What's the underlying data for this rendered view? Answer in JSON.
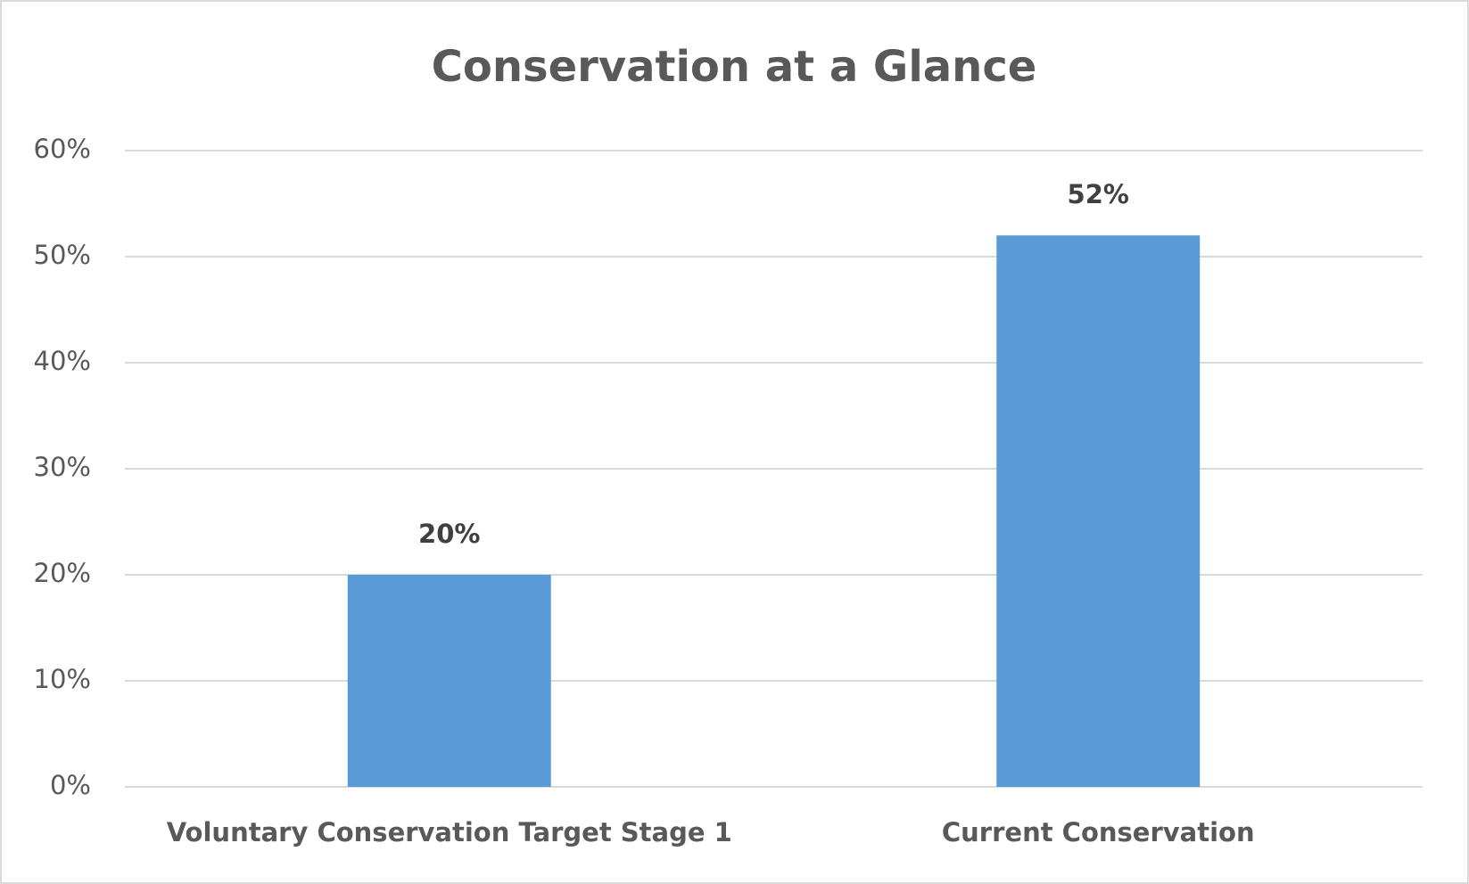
{
  "chart_data": {
    "type": "bar",
    "title": "Conservation at a Glance",
    "categories": [
      "Voluntary Conservation Target Stage 1",
      "Current Conservation"
    ],
    "values": [
      20,
      52
    ],
    "value_labels": [
      "20%",
      "52%"
    ],
    "color": "#5b9bd5",
    "ylim": [
      0,
      60
    ],
    "yticks": [
      {
        "value": 0,
        "label": "0%"
      },
      {
        "value": 10,
        "label": "10%"
      },
      {
        "value": 20,
        "label": "20%"
      },
      {
        "value": 30,
        "label": "30%"
      },
      {
        "value": 40,
        "label": "40%"
      },
      {
        "value": 50,
        "label": "50%"
      },
      {
        "value": 60,
        "label": "60%"
      }
    ],
    "grid": true
  }
}
